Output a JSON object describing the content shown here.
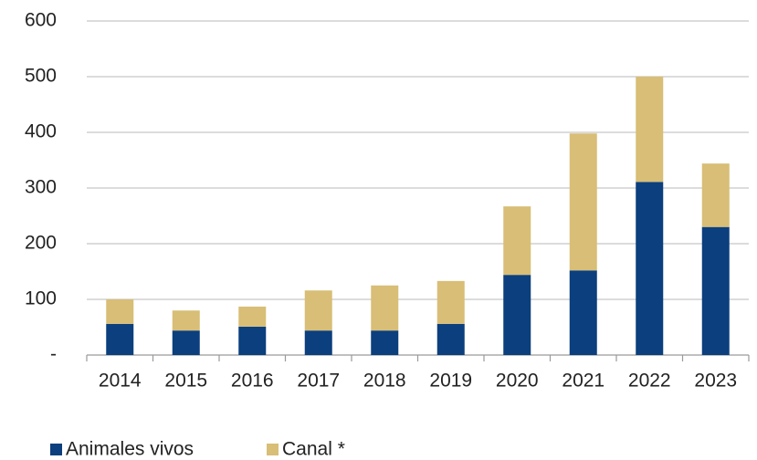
{
  "chart_data": {
    "type": "stacked_bar",
    "categories": [
      "2014",
      "2015",
      "2016",
      "2017",
      "2018",
      "2019",
      "2020",
      "2021",
      "2022",
      "2023"
    ],
    "series": [
      {
        "name": "Animales vivos",
        "color": "#0b3f7d",
        "values": [
          56,
          44,
          51,
          44,
          44,
          56,
          144,
          152,
          311,
          230
        ]
      },
      {
        "name": "Canal *",
        "color": "#d8be76",
        "values": [
          44,
          36,
          36,
          72,
          81,
          77,
          123,
          246,
          189,
          114
        ]
      }
    ],
    "ylim": [
      0,
      600
    ],
    "yticks": [
      {
        "value": 0,
        "label": "-"
      },
      100,
      200,
      300,
      400,
      500,
      600
    ],
    "grid": true,
    "legend": "bottom-left"
  }
}
